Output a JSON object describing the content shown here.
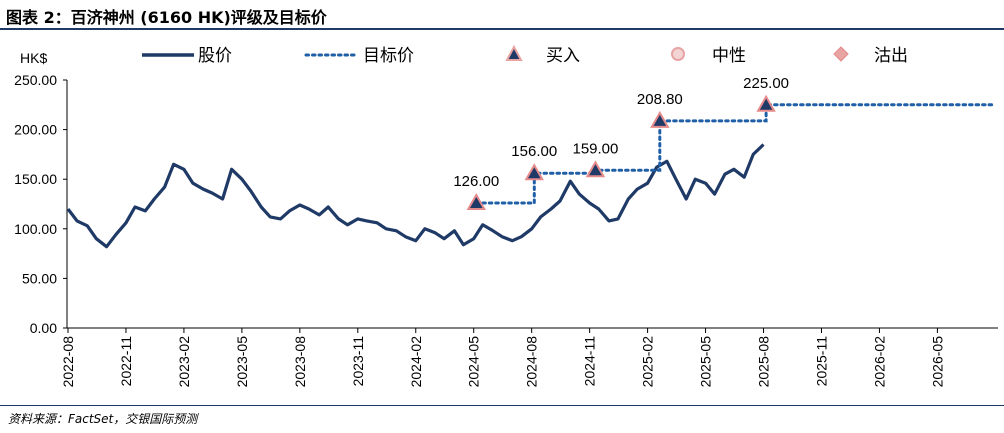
{
  "title": "图表 2：百济神州 (6160 HK)评级及目标价",
  "source": "资料来源：FactSet，交银国际预测",
  "chart_data": {
    "type": "line",
    "ylabel": "HK$",
    "ylim": [
      0,
      250
    ],
    "yticks": [
      "250.00",
      "200.00",
      "150.00",
      "100.00",
      "50.00",
      "0.00"
    ],
    "ytick_values": [
      250,
      200,
      150,
      100,
      50,
      0
    ],
    "xticks": [
      "2022-08",
      "2022-11",
      "2023-02",
      "2023-05",
      "2023-08",
      "2023-11",
      "2024-02",
      "2024-05",
      "2024-08",
      "2024-11",
      "2025-02",
      "2025-05",
      "2025-08",
      "2025-11",
      "2026-02",
      "2026-05"
    ],
    "xrange_months": [
      "2022-08",
      "2026-08"
    ],
    "legend": {
      "position": "top",
      "items": [
        {
          "label": "股价",
          "style": "solid-line",
          "color": "#1f3a66"
        },
        {
          "label": "目标价",
          "style": "dotted-line",
          "color": "#1f5fa8"
        },
        {
          "label": "买入",
          "style": "triangle",
          "color": "#e8a3a3"
        },
        {
          "label": "中性",
          "style": "circle",
          "color": "#e8a3a3"
        },
        {
          "label": "沽出",
          "style": "diamond",
          "color": "#e8a3a3"
        }
      ]
    },
    "series": [
      {
        "name": "股价",
        "color": "#1f3a66",
        "points": [
          [
            "2022-08-01",
            120
          ],
          [
            "2022-08-15",
            108
          ],
          [
            "2022-09-01",
            103
          ],
          [
            "2022-09-15",
            90
          ],
          [
            "2022-10-01",
            82
          ],
          [
            "2022-10-15",
            94
          ],
          [
            "2022-11-01",
            106
          ],
          [
            "2022-11-15",
            122
          ],
          [
            "2022-12-01",
            118
          ],
          [
            "2022-12-15",
            130
          ],
          [
            "2023-01-01",
            142
          ],
          [
            "2023-01-15",
            165
          ],
          [
            "2023-02-01",
            160
          ],
          [
            "2023-02-15",
            146
          ],
          [
            "2023-03-01",
            140
          ],
          [
            "2023-03-15",
            136
          ],
          [
            "2023-04-01",
            130
          ],
          [
            "2023-04-15",
            160
          ],
          [
            "2023-05-01",
            150
          ],
          [
            "2023-05-15",
            138
          ],
          [
            "2023-06-01",
            122
          ],
          [
            "2023-06-15",
            112
          ],
          [
            "2023-07-01",
            110
          ],
          [
            "2023-07-15",
            118
          ],
          [
            "2023-08-01",
            124
          ],
          [
            "2023-08-15",
            120
          ],
          [
            "2023-09-01",
            114
          ],
          [
            "2023-09-15",
            122
          ],
          [
            "2023-10-01",
            110
          ],
          [
            "2023-10-15",
            104
          ],
          [
            "2023-11-01",
            110
          ],
          [
            "2023-11-15",
            108
          ],
          [
            "2023-12-01",
            106
          ],
          [
            "2023-12-15",
            100
          ],
          [
            "2024-01-01",
            98
          ],
          [
            "2024-01-15",
            92
          ],
          [
            "2024-02-01",
            88
          ],
          [
            "2024-02-15",
            100
          ],
          [
            "2024-03-01",
            96
          ],
          [
            "2024-03-15",
            90
          ],
          [
            "2024-04-01",
            98
          ],
          [
            "2024-04-15",
            84
          ],
          [
            "2024-05-01",
            90
          ],
          [
            "2024-05-15",
            104
          ],
          [
            "2024-06-01",
            98
          ],
          [
            "2024-06-15",
            92
          ],
          [
            "2024-07-01",
            88
          ],
          [
            "2024-07-15",
            92
          ],
          [
            "2024-08-01",
            100
          ],
          [
            "2024-08-15",
            112
          ],
          [
            "2024-09-01",
            120
          ],
          [
            "2024-09-15",
            128
          ],
          [
            "2024-10-01",
            148
          ],
          [
            "2024-10-15",
            135
          ],
          [
            "2024-11-01",
            126
          ],
          [
            "2024-11-15",
            120
          ],
          [
            "2024-12-01",
            108
          ],
          [
            "2024-12-15",
            110
          ],
          [
            "2025-01-01",
            130
          ],
          [
            "2025-01-15",
            140
          ],
          [
            "2025-02-01",
            146
          ],
          [
            "2025-02-15",
            162
          ],
          [
            "2025-03-01",
            168
          ],
          [
            "2025-03-15",
            150
          ],
          [
            "2025-04-01",
            130
          ],
          [
            "2025-04-15",
            150
          ],
          [
            "2025-05-01",
            146
          ],
          [
            "2025-05-15",
            135
          ],
          [
            "2025-06-01",
            155
          ],
          [
            "2025-06-15",
            160
          ],
          [
            "2025-07-01",
            152
          ],
          [
            "2025-07-15",
            175
          ],
          [
            "2025-08-01",
            185
          ]
        ]
      },
      {
        "name": "目标价",
        "color": "#1f5fa8",
        "points": [
          [
            "2024-05-05",
            126
          ],
          [
            "2024-08-05",
            126
          ],
          [
            "2024-08-05",
            156
          ],
          [
            "2024-11-10",
            156
          ],
          [
            "2024-11-10",
            159
          ],
          [
            "2025-02-20",
            159
          ],
          [
            "2025-02-20",
            208.8
          ],
          [
            "2025-08-05",
            208.8
          ],
          [
            "2025-08-05",
            225
          ],
          [
            "2026-08-01",
            225
          ]
        ]
      }
    ],
    "rating_markers": [
      {
        "date": "2024-05-05",
        "value": 126.0,
        "rating": "买入",
        "label": "126.00"
      },
      {
        "date": "2024-08-05",
        "value": 156.0,
        "rating": "买入",
        "label": "156.00"
      },
      {
        "date": "2024-11-10",
        "value": 159.0,
        "rating": "买入",
        "label": "159.00"
      },
      {
        "date": "2025-02-20",
        "value": 208.8,
        "rating": "买入",
        "label": "208.80"
      },
      {
        "date": "2025-08-05",
        "value": 225.0,
        "rating": "买入",
        "label": "225.00"
      }
    ]
  }
}
